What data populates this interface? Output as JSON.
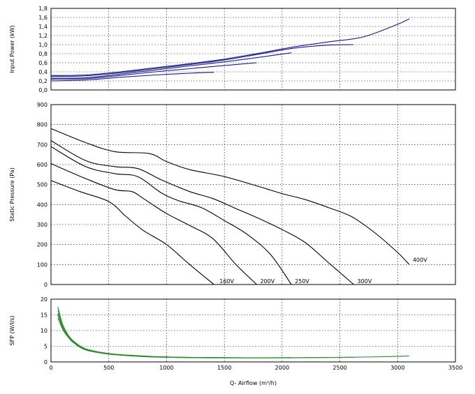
{
  "chart_data": [
    {
      "type": "line",
      "ylabel": "Input Power (kW)",
      "xlim": [
        0,
        3500
      ],
      "ylim": [
        0,
        1.8
      ],
      "y_ticks": [
        "0,0",
        "0,2",
        "0,4",
        "0,6",
        "0,8",
        "1,0",
        "1,2",
        "1,4",
        "1,6",
        "1,8"
      ],
      "line_color": "#1a1a8c",
      "grid": true,
      "series": [
        {
          "x": [
            0,
            300,
            600,
            900,
            1200,
            1410
          ],
          "y": [
            0.2,
            0.22,
            0.28,
            0.33,
            0.37,
            0.39
          ]
        },
        {
          "x": [
            0,
            300,
            600,
            900,
            1200,
            1500,
            1780
          ],
          "y": [
            0.24,
            0.25,
            0.32,
            0.4,
            0.47,
            0.54,
            0.6
          ]
        },
        {
          "x": [
            0,
            300,
            600,
            900,
            1200,
            1500,
            1800,
            2080
          ],
          "y": [
            0.26,
            0.27,
            0.35,
            0.44,
            0.53,
            0.62,
            0.72,
            0.82
          ]
        },
        {
          "x": [
            0,
            300,
            600,
            900,
            1200,
            1500,
            1800,
            2100,
            2400,
            2620
          ],
          "y": [
            0.3,
            0.31,
            0.38,
            0.47,
            0.56,
            0.66,
            0.79,
            0.92,
            0.99,
            1.0
          ]
        },
        {
          "x": [
            0,
            300,
            600,
            900,
            1200,
            1500,
            1800,
            2100,
            2400,
            2700,
            3000,
            3100
          ],
          "y": [
            0.32,
            0.33,
            0.4,
            0.49,
            0.58,
            0.68,
            0.81,
            0.95,
            1.06,
            1.17,
            1.45,
            1.57
          ]
        }
      ]
    },
    {
      "type": "line",
      "ylabel": "Static Pressure (Pa)",
      "xlim": [
        0,
        3500
      ],
      "ylim": [
        0,
        900
      ],
      "y_ticks": [
        "0",
        "100",
        "200",
        "300",
        "400",
        "500",
        "600",
        "700",
        "800",
        "900"
      ],
      "line_color": "#000000",
      "grid": true,
      "series": [
        {
          "name": "160V",
          "x": [
            0,
            250,
            500,
            650,
            800,
            1000,
            1200,
            1410
          ],
          "y": [
            520,
            465,
            415,
            340,
            270,
            200,
            100,
            0
          ]
        },
        {
          "name": "200V",
          "x": [
            0,
            300,
            550,
            700,
            800,
            1000,
            1200,
            1400,
            1600,
            1780
          ],
          "y": [
            605,
            530,
            475,
            465,
            430,
            355,
            295,
            230,
            100,
            0
          ]
        },
        {
          "name": "250V",
          "x": [
            0,
            300,
            550,
            750,
            950,
            1100,
            1300,
            1500,
            1700,
            1900,
            2080
          ],
          "y": [
            690,
            590,
            555,
            540,
            460,
            420,
            385,
            320,
            250,
            150,
            0
          ]
        },
        {
          "name": "300V",
          "x": [
            0,
            300,
            550,
            750,
            950,
            1200,
            1400,
            1600,
            1800,
            2000,
            2200,
            2400,
            2620
          ],
          "y": [
            720,
            620,
            590,
            580,
            525,
            465,
            430,
            380,
            330,
            275,
            210,
            110,
            0
          ]
        },
        {
          "name": "400V",
          "x": [
            0,
            300,
            550,
            850,
            1000,
            1200,
            1500,
            1800,
            2000,
            2200,
            2400,
            2600,
            2800,
            3000,
            3100
          ],
          "y": [
            780,
            710,
            665,
            655,
            615,
            575,
            540,
            490,
            455,
            425,
            385,
            340,
            260,
            160,
            100
          ]
        }
      ],
      "annotations": [
        "160V",
        "200V",
        "250V",
        "300V",
        "400V"
      ]
    },
    {
      "type": "line",
      "ylabel": "SFP (W/l/s)",
      "xlabel": "Q- Airflow (m³/h)",
      "xlim": [
        0,
        3500
      ],
      "ylim": [
        0,
        20
      ],
      "x_ticks": [
        "0",
        "500",
        "1000",
        "1500",
        "2000",
        "2500",
        "3000",
        "3500"
      ],
      "y_ticks": [
        "0",
        "5",
        "10",
        "15",
        "20"
      ],
      "line_color": "#2e8b2e",
      "grid": true,
      "series": [
        {
          "x": [
            60,
            100,
            150,
            200,
            300,
            500,
            800,
            1100,
            1410
          ],
          "y": [
            17.5,
            12,
            8,
            6,
            3.8,
            2.5,
            1.7,
            1.4,
            1.3
          ]
        },
        {
          "x": [
            60,
            100,
            150,
            200,
            300,
            500,
            800,
            1100,
            1400,
            1780
          ],
          "y": [
            16.5,
            12,
            8.5,
            6.3,
            4.0,
            2.6,
            1.8,
            1.5,
            1.3,
            1.3
          ]
        },
        {
          "x": [
            60,
            100,
            150,
            200,
            300,
            500,
            800,
            1100,
            1400,
            1700,
            2080
          ],
          "y": [
            15.5,
            11.5,
            8.5,
            6.5,
            4.2,
            2.7,
            1.9,
            1.5,
            1.4,
            1.3,
            1.4
          ]
        },
        {
          "x": [
            60,
            100,
            150,
            200,
            300,
            500,
            800,
            1100,
            1400,
            1700,
            2000,
            2300,
            2620
          ],
          "y": [
            15,
            11,
            8,
            6.2,
            4.0,
            2.6,
            1.8,
            1.5,
            1.4,
            1.3,
            1.3,
            1.4,
            1.5
          ]
        },
        {
          "x": [
            60,
            100,
            150,
            200,
            300,
            500,
            800,
            1100,
            1400,
            1700,
            2000,
            2300,
            2600,
            2900,
            3100
          ],
          "y": [
            14,
            10.5,
            7.8,
            6,
            3.9,
            2.5,
            1.8,
            1.5,
            1.4,
            1.3,
            1.3,
            1.4,
            1.5,
            1.7,
            1.9
          ]
        }
      ]
    }
  ]
}
